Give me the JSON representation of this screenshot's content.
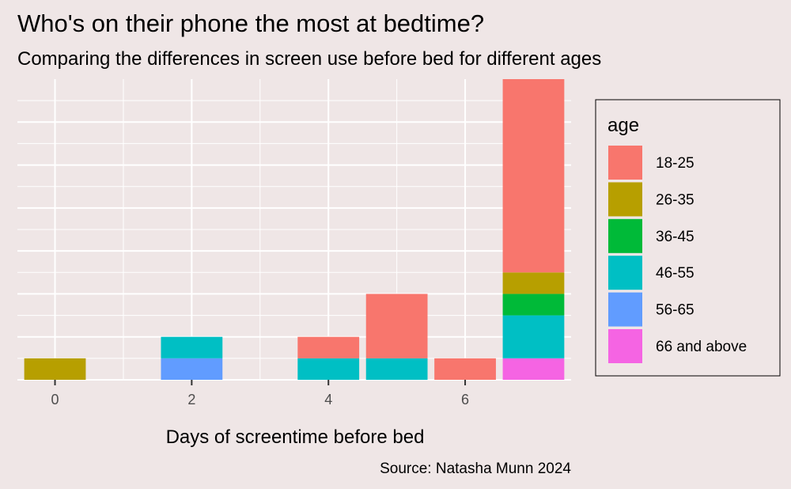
{
  "chart_data": {
    "type": "bar",
    "stacked": true,
    "title": "Who's on their phone the most at bedtime?",
    "subtitle": "Comparing the differences in screen use before bed for different ages",
    "xlabel": "Days of screentime before bed",
    "ylabel": "",
    "caption": "Source: Natasha Munn 2024",
    "x_ticks": [
      "0",
      "2",
      "4",
      "6"
    ],
    "x_tick_values": [
      0,
      2,
      4,
      6
    ],
    "xlim": [
      -0.55,
      7.55
    ],
    "ylim": [
      0,
      14
    ],
    "grid": true,
    "legend_title": "age",
    "legend_position": "right",
    "x": [
      0,
      2,
      4,
      5,
      6,
      7
    ],
    "series": [
      {
        "name": "18-25",
        "color": "#F8766D",
        "values": [
          0,
          0,
          1,
          3,
          1,
          9
        ]
      },
      {
        "name": "26-35",
        "color": "#B79F00",
        "values": [
          1,
          0,
          0,
          0,
          0,
          1
        ]
      },
      {
        "name": "36-45",
        "color": "#00BA38",
        "values": [
          0,
          0,
          0,
          0,
          0,
          1
        ]
      },
      {
        "name": "46-55",
        "color": "#00BFC4",
        "values": [
          0,
          1,
          1,
          1,
          0,
          2
        ]
      },
      {
        "name": "56-65",
        "color": "#619CFF",
        "values": [
          0,
          1,
          0,
          0,
          0,
          0
        ]
      },
      {
        "name": "66 and above",
        "color": "#F564E3",
        "values": [
          0,
          0,
          0,
          0,
          0,
          1
        ]
      }
    ]
  }
}
